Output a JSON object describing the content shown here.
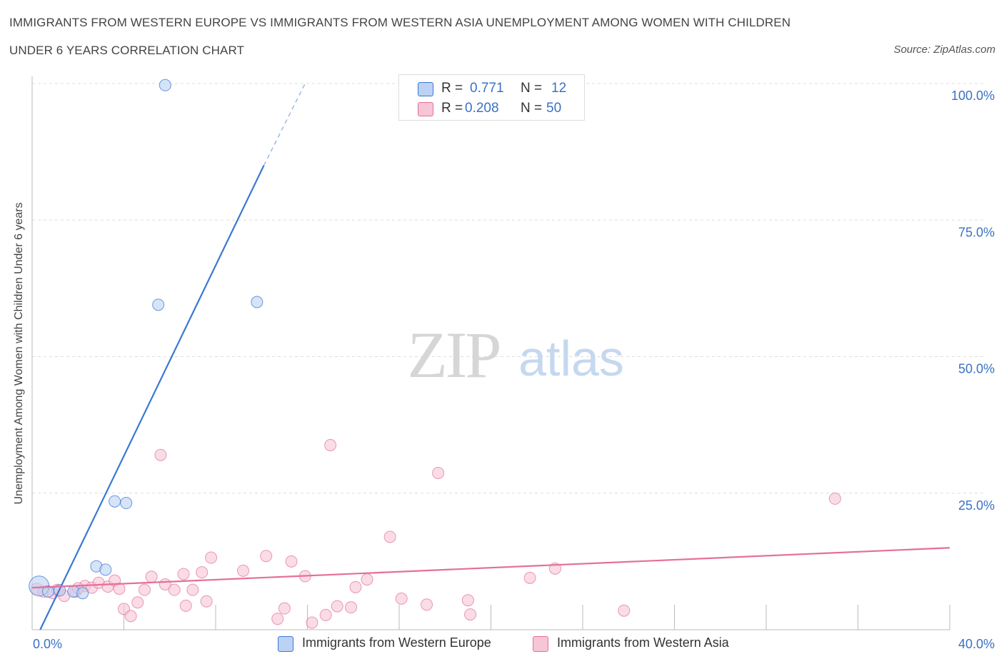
{
  "chart_data": {
    "type": "scatter",
    "title": "IMMIGRANTS FROM WESTERN EUROPE VS IMMIGRANTS FROM WESTERN ASIA UNEMPLOYMENT AMONG WOMEN WITH CHILDREN",
    "subtitle": "UNDER 6 YEARS CORRELATION CHART",
    "source": "Source: ZipAtlas.com",
    "ylabel": "Unemployment Among Women with Children Under 6 years",
    "xlabel": "",
    "xlim": [
      0,
      40
    ],
    "ylim": [
      0,
      100
    ],
    "x_tick_labels": {
      "left": "0.0%",
      "right": "40.0%"
    },
    "y_tick_labels": [
      "100.0%",
      "75.0%",
      "50.0%",
      "25.0%"
    ],
    "y_tick_values": [
      100,
      75,
      50,
      25
    ],
    "x_minor_ticks": [
      4,
      8,
      12,
      16,
      20,
      24,
      28,
      32,
      36,
      40
    ],
    "grid": true,
    "watermark": {
      "zip": "ZIP",
      "atlas": "atlas"
    },
    "legend": {
      "r_label": "R =",
      "n_label": "N =",
      "entries": [
        {
          "r": "0.771",
          "n": "12"
        },
        {
          "r": "0.208",
          "n": "50"
        }
      ]
    },
    "series": [
      {
        "name": "Immigrants from Western Europe",
        "color": "#3a78d4",
        "fill": "#bcd2f3",
        "points": [
          [
            0.3,
            8.0
          ],
          [
            0.7,
            7.0
          ],
          [
            1.2,
            7.2
          ],
          [
            1.8,
            7.0
          ],
          [
            2.2,
            6.7
          ],
          [
            2.8,
            11.6
          ],
          [
            3.2,
            11.0
          ],
          [
            3.6,
            23.5
          ],
          [
            4.1,
            23.2
          ],
          [
            5.5,
            59.5
          ],
          [
            5.8,
            99.7
          ],
          [
            9.8,
            60.0
          ]
        ],
        "trendline": {
          "x0": 0.35,
          "y0": 0.0,
          "x1": 10.1,
          "y1": 85.0,
          "dash_x1": 11.9,
          "dash_y1": 100.0
        }
      },
      {
        "name": "Immigrants from Western Asia",
        "color": "#e46f9a",
        "fill": "#f7c5d6",
        "points": [
          [
            0.2,
            7.5
          ],
          [
            0.5,
            7.0
          ],
          [
            0.9,
            6.7
          ],
          [
            1.4,
            6.2
          ],
          [
            1.9,
            7.0
          ],
          [
            2.3,
            8.0
          ],
          [
            2.6,
            7.7
          ],
          [
            2.9,
            8.6
          ],
          [
            3.3,
            7.9
          ],
          [
            3.6,
            9.0
          ],
          [
            3.8,
            7.5
          ],
          [
            4.0,
            3.8
          ],
          [
            4.3,
            2.5
          ],
          [
            4.6,
            5.0
          ],
          [
            4.9,
            7.3
          ],
          [
            5.2,
            9.7
          ],
          [
            5.6,
            32.0
          ],
          [
            5.8,
            8.3
          ],
          [
            6.2,
            7.3
          ],
          [
            6.6,
            10.2
          ],
          [
            6.7,
            4.4
          ],
          [
            7.0,
            7.3
          ],
          [
            7.4,
            10.5
          ],
          [
            7.8,
            13.2
          ],
          [
            7.6,
            5.2
          ],
          [
            9.2,
            10.8
          ],
          [
            10.2,
            13.5
          ],
          [
            10.7,
            2.0
          ],
          [
            11.0,
            3.9
          ],
          [
            11.3,
            12.5
          ],
          [
            11.9,
            9.8
          ],
          [
            12.2,
            1.3
          ],
          [
            12.8,
            2.7
          ],
          [
            13.0,
            33.8
          ],
          [
            13.3,
            4.3
          ],
          [
            13.9,
            4.1
          ],
          [
            14.1,
            7.8
          ],
          [
            14.6,
            9.2
          ],
          [
            15.6,
            17.0
          ],
          [
            16.1,
            5.7
          ],
          [
            17.2,
            4.6
          ],
          [
            17.7,
            28.7
          ],
          [
            19.0,
            5.4
          ],
          [
            19.1,
            2.8
          ],
          [
            21.7,
            9.5
          ],
          [
            22.8,
            11.2
          ],
          [
            25.8,
            3.5
          ],
          [
            35.0,
            24.0
          ],
          [
            1.1,
            7.3
          ],
          [
            2.0,
            7.6
          ]
        ],
        "trendline": {
          "x0": 0.0,
          "y0": 7.7,
          "x1": 40.0,
          "y1": 15.0
        }
      }
    ]
  }
}
